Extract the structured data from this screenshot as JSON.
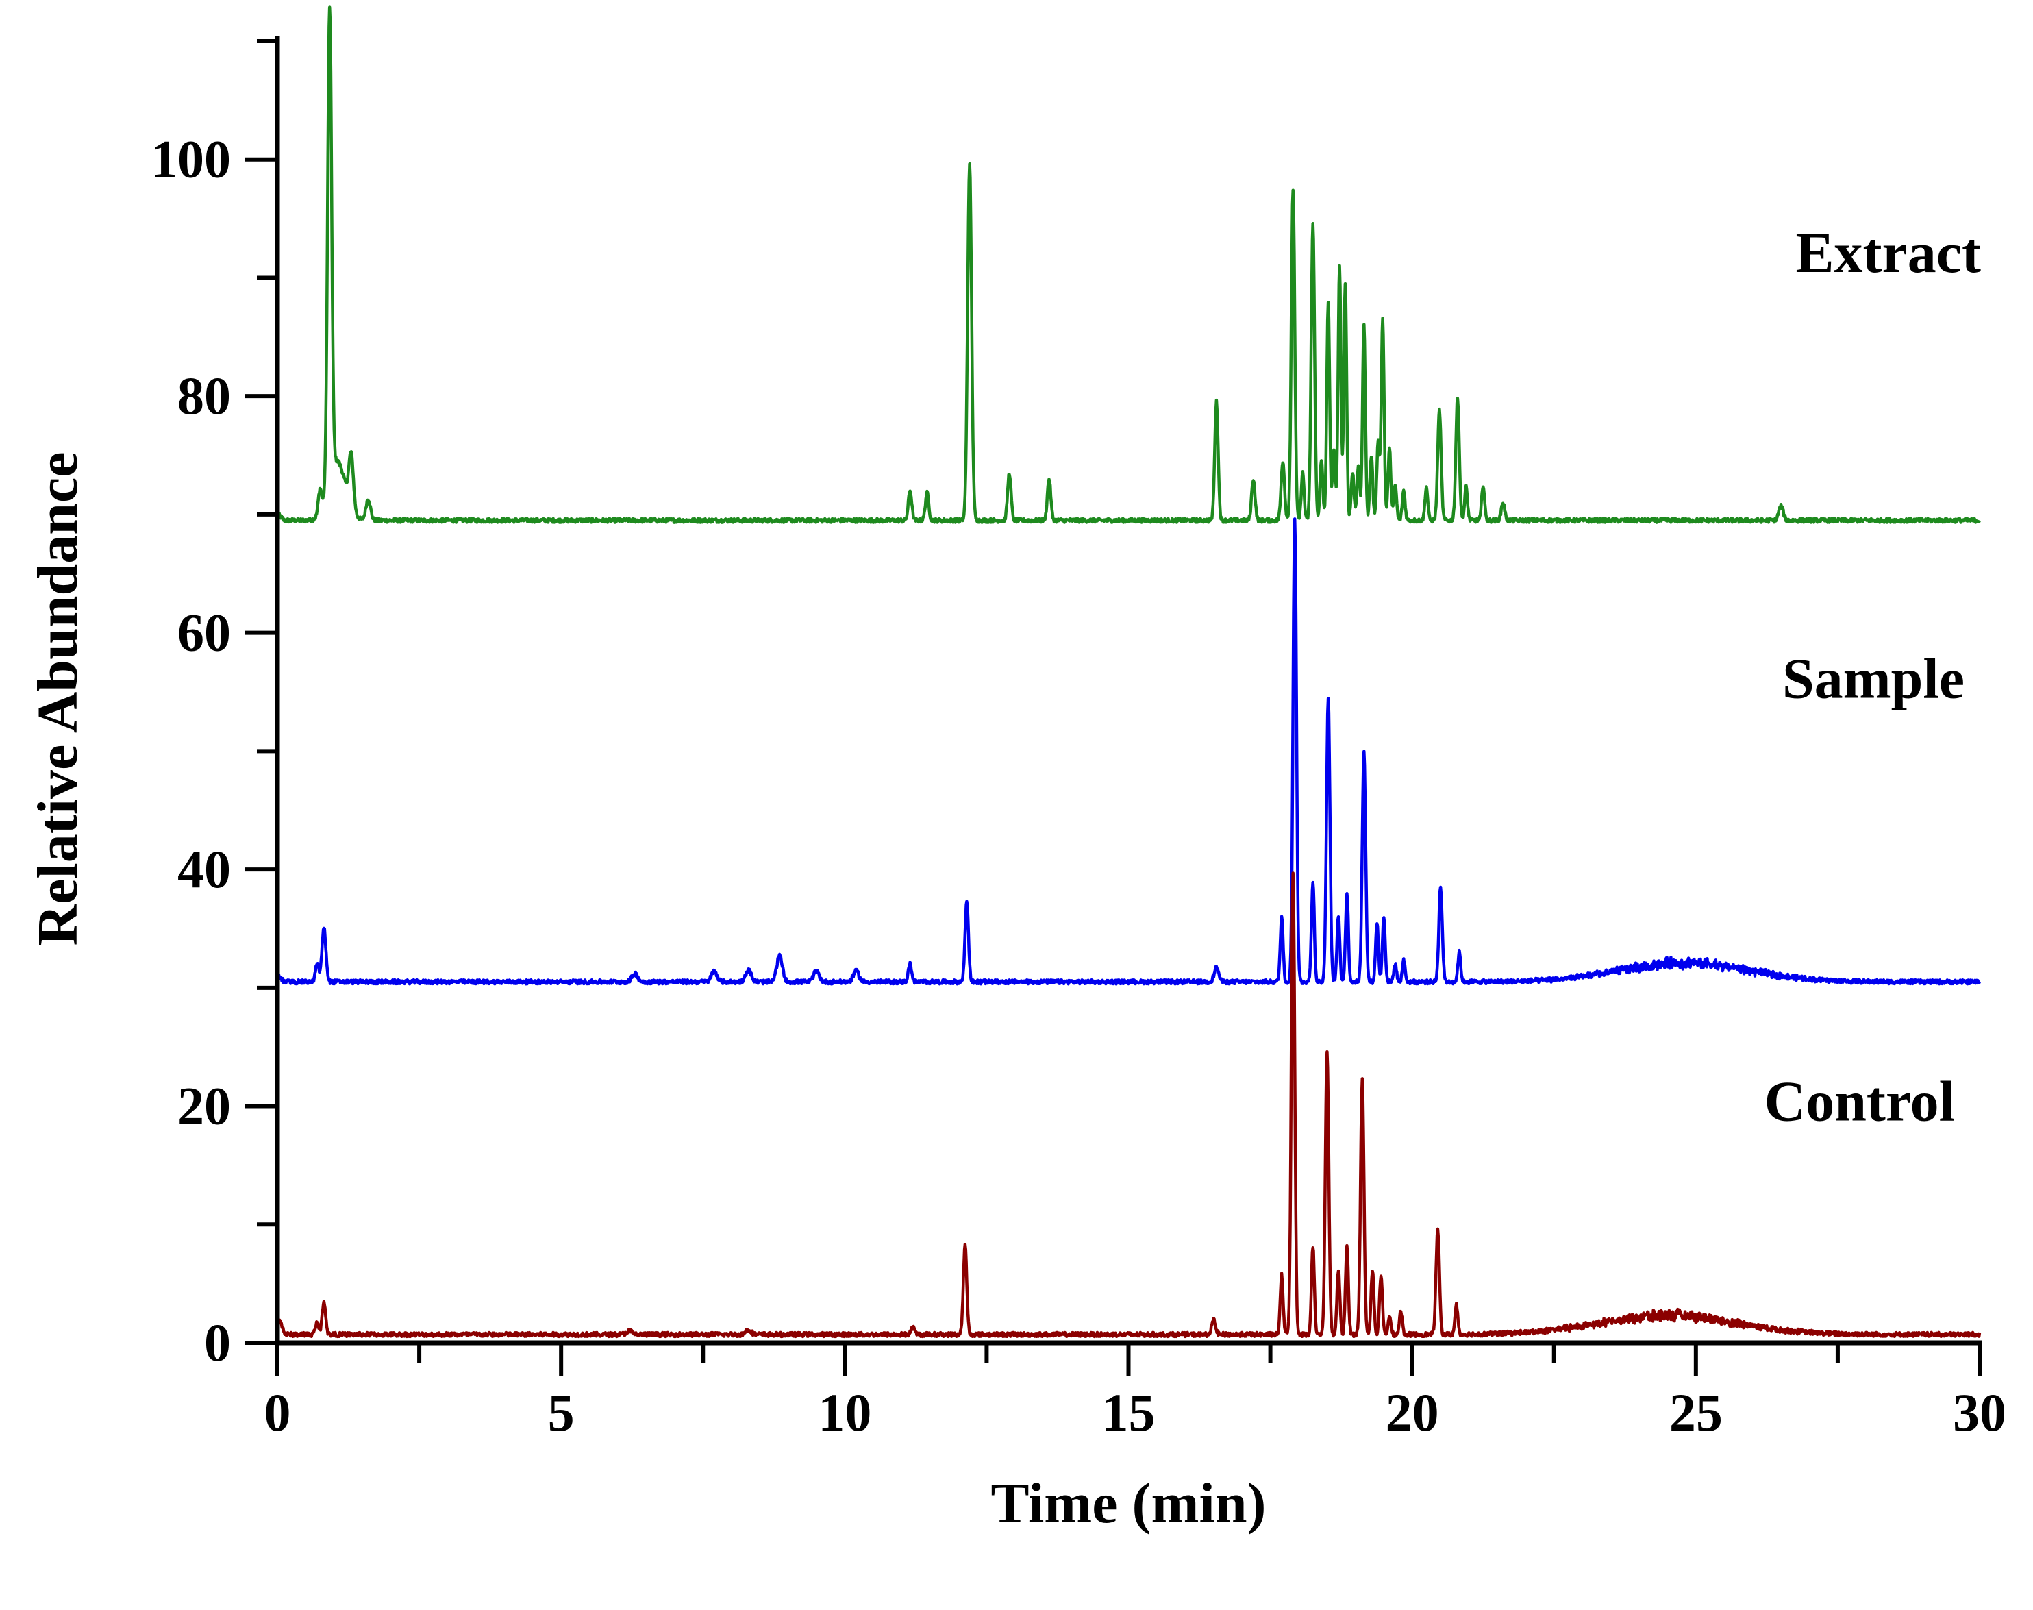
{
  "chart_data": {
    "type": "line",
    "title": "",
    "xlabel": "Time (min)",
    "ylabel": "Relative Abundance",
    "xlim": [
      0,
      30
    ],
    "ylim": [
      0,
      110
    ],
    "grid": false,
    "x_ticks": [
      0,
      5,
      10,
      15,
      20,
      25,
      30
    ],
    "x_minor_step": 2.5,
    "y_ticks": [
      0,
      20,
      40,
      60,
      80,
      100
    ],
    "y_minor_step": 10,
    "legend_position": "inline-right",
    "series": [
      {
        "name": "Extract",
        "color": "#1e8a1e",
        "baseline": 69.5,
        "baseline_rise_at_end": 0,
        "peaks": [
          {
            "x": 0.75,
            "h": 2.0,
            "w": 0.03
          },
          {
            "x": 0.92,
            "h": 40.0,
            "w": 0.035
          },
          {
            "x": 1.05,
            "h": 5.0,
            "w": 0.15
          },
          {
            "x": 1.3,
            "h": 4.5,
            "w": 0.04
          },
          {
            "x": 1.6,
            "h": 1.8,
            "w": 0.04
          },
          {
            "x": 11.15,
            "h": 2.5,
            "w": 0.03
          },
          {
            "x": 11.45,
            "h": 2.3,
            "w": 0.03
          },
          {
            "x": 12.2,
            "h": 30.0,
            "w": 0.035
          },
          {
            "x": 12.9,
            "h": 4.0,
            "w": 0.03
          },
          {
            "x": 13.6,
            "h": 3.5,
            "w": 0.03
          },
          {
            "x": 16.55,
            "h": 10.0,
            "w": 0.03
          },
          {
            "x": 17.2,
            "h": 3.5,
            "w": 0.03
          },
          {
            "x": 17.72,
            "h": 5.0,
            "w": 0.03
          },
          {
            "x": 17.9,
            "h": 28.0,
            "w": 0.03
          },
          {
            "x": 18.07,
            "h": 4.0,
            "w": 0.025
          },
          {
            "x": 18.25,
            "h": 25.0,
            "w": 0.03
          },
          {
            "x": 18.4,
            "h": 5.0,
            "w": 0.025
          },
          {
            "x": 18.52,
            "h": 18.5,
            "w": 0.025
          },
          {
            "x": 18.62,
            "h": 6.0,
            "w": 0.025
          },
          {
            "x": 18.72,
            "h": 21.5,
            "w": 0.025
          },
          {
            "x": 18.82,
            "h": 20.0,
            "w": 0.025
          },
          {
            "x": 18.95,
            "h": 4.0,
            "w": 0.025
          },
          {
            "x": 19.05,
            "h": 4.5,
            "w": 0.025
          },
          {
            "x": 19.15,
            "h": 16.5,
            "w": 0.025
          },
          {
            "x": 19.28,
            "h": 5.5,
            "w": 0.025
          },
          {
            "x": 19.4,
            "h": 6.5,
            "w": 0.025
          },
          {
            "x": 19.48,
            "h": 17.0,
            "w": 0.025
          },
          {
            "x": 19.6,
            "h": 6.0,
            "w": 0.025
          },
          {
            "x": 19.7,
            "h": 3.0,
            "w": 0.025
          },
          {
            "x": 19.85,
            "h": 2.5,
            "w": 0.025
          },
          {
            "x": 20.25,
            "h": 2.8,
            "w": 0.025
          },
          {
            "x": 20.48,
            "h": 9.3,
            "w": 0.03
          },
          {
            "x": 20.8,
            "h": 10.3,
            "w": 0.03
          },
          {
            "x": 20.95,
            "h": 2.8,
            "w": 0.025
          },
          {
            "x": 21.25,
            "h": 3.0,
            "w": 0.025
          },
          {
            "x": 21.6,
            "h": 1.5,
            "w": 0.03
          },
          {
            "x": 26.5,
            "h": 1.2,
            "w": 0.04
          }
        ]
      },
      {
        "name": "Sample",
        "color": "#0000ee",
        "baseline": 30.5,
        "baseline_rise_at_end": 0,
        "hump": {
          "center": 24.8,
          "width": 1.6,
          "height": 1.6
        },
        "peaks": [
          {
            "x": 0.7,
            "h": 1.5,
            "w": 0.03
          },
          {
            "x": 0.82,
            "h": 4.5,
            "w": 0.035
          },
          {
            "x": 6.3,
            "h": 0.7,
            "w": 0.05
          },
          {
            "x": 7.7,
            "h": 0.9,
            "w": 0.05
          },
          {
            "x": 8.3,
            "h": 1.0,
            "w": 0.05
          },
          {
            "x": 8.85,
            "h": 2.2,
            "w": 0.05
          },
          {
            "x": 9.5,
            "h": 0.9,
            "w": 0.05
          },
          {
            "x": 10.2,
            "h": 0.9,
            "w": 0.05
          },
          {
            "x": 11.15,
            "h": 1.5,
            "w": 0.03
          },
          {
            "x": 12.15,
            "h": 6.8,
            "w": 0.03
          },
          {
            "x": 16.55,
            "h": 1.2,
            "w": 0.04
          },
          {
            "x": 17.7,
            "h": 5.5,
            "w": 0.025
          },
          {
            "x": 17.93,
            "h": 39.0,
            "w": 0.03
          },
          {
            "x": 18.25,
            "h": 8.5,
            "w": 0.025
          },
          {
            "x": 18.52,
            "h": 24.0,
            "w": 0.03
          },
          {
            "x": 18.7,
            "h": 5.5,
            "w": 0.025
          },
          {
            "x": 18.85,
            "h": 7.5,
            "w": 0.025
          },
          {
            "x": 19.15,
            "h": 19.5,
            "w": 0.03
          },
          {
            "x": 19.38,
            "h": 5.0,
            "w": 0.025
          },
          {
            "x": 19.5,
            "h": 5.5,
            "w": 0.025
          },
          {
            "x": 19.7,
            "h": 1.5,
            "w": 0.025
          },
          {
            "x": 19.85,
            "h": 1.8,
            "w": 0.025
          },
          {
            "x": 20.5,
            "h": 8.0,
            "w": 0.03
          },
          {
            "x": 20.83,
            "h": 2.5,
            "w": 0.025
          }
        ]
      },
      {
        "name": "Control",
        "color": "#8b0000",
        "baseline": 0.7,
        "baseline_rise_at_end": 0,
        "hump": {
          "center": 24.5,
          "width": 1.7,
          "height": 1.6
        },
        "peaks": [
          {
            "x": 0.05,
            "h": 0.8,
            "w": 0.04
          },
          {
            "x": 0.7,
            "h": 1.0,
            "w": 0.03
          },
          {
            "x": 0.82,
            "h": 2.8,
            "w": 0.03
          },
          {
            "x": 6.2,
            "h": 0.3,
            "w": 0.05
          },
          {
            "x": 8.3,
            "h": 0.4,
            "w": 0.05
          },
          {
            "x": 11.2,
            "h": 0.6,
            "w": 0.03
          },
          {
            "x": 12.12,
            "h": 7.5,
            "w": 0.03
          },
          {
            "x": 16.5,
            "h": 1.2,
            "w": 0.035
          },
          {
            "x": 17.7,
            "h": 5.0,
            "w": 0.025
          },
          {
            "x": 17.9,
            "h": 39.0,
            "w": 0.03
          },
          {
            "x": 18.25,
            "h": 7.5,
            "w": 0.025
          },
          {
            "x": 18.5,
            "h": 24.0,
            "w": 0.03
          },
          {
            "x": 18.7,
            "h": 5.5,
            "w": 0.025
          },
          {
            "x": 18.85,
            "h": 7.5,
            "w": 0.025
          },
          {
            "x": 19.12,
            "h": 21.5,
            "w": 0.03
          },
          {
            "x": 19.3,
            "h": 5.5,
            "w": 0.025
          },
          {
            "x": 19.45,
            "h": 5.0,
            "w": 0.025
          },
          {
            "x": 19.6,
            "h": 1.5,
            "w": 0.025
          },
          {
            "x": 19.8,
            "h": 2.0,
            "w": 0.025
          },
          {
            "x": 20.45,
            "h": 8.8,
            "w": 0.03
          },
          {
            "x": 20.78,
            "h": 2.5,
            "w": 0.025
          }
        ]
      }
    ],
    "annotations": [
      {
        "text": "Extract",
        "series": "Extract"
      },
      {
        "text": "Sample",
        "series": "Sample"
      },
      {
        "text": "Control",
        "series": "Control"
      }
    ]
  }
}
